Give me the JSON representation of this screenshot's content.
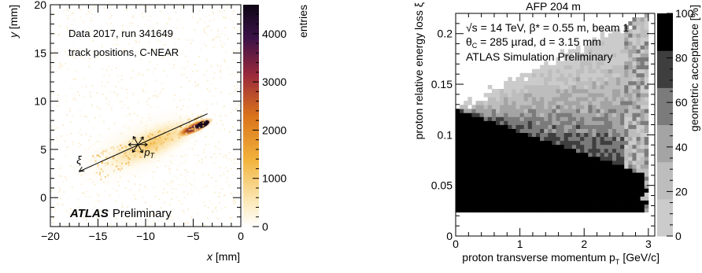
{
  "chart_data": [
    {
      "type": "heatmap",
      "title": "",
      "xlabel": "x [mm]",
      "ylabel": "y [mm]",
      "xlim": [
        -20,
        0
      ],
      "ylim": [
        -3,
        20
      ],
      "xticks": [
        "−20",
        "−15",
        "−10",
        "−5",
        "0"
      ],
      "yticks": [
        "0",
        "5",
        "10",
        "15",
        "20"
      ],
      "colorbar": {
        "label": "entries",
        "range": [
          0,
          4600
        ],
        "ticks": [
          "0",
          "1000",
          "2000",
          "3000",
          "4000"
        ],
        "colors": [
          "#ffffff",
          "#fbe7b4",
          "#f2b33c",
          "#d9731b",
          "#9b2a3c",
          "#3c1248",
          "#0d0615"
        ]
      },
      "annotations": [
        "Data 2017, run 341649",
        "track positions, C-NEAR"
      ],
      "atlas_label": "ATLAS",
      "atlas_suffix": "Preliminary",
      "arrow_labels": {
        "xi": "ξ",
        "pt": "p",
        "pt_sub": "T"
      },
      "distribution": {
        "peak": {
          "x": -4.0,
          "y": 7.6,
          "value": 4600
        },
        "axis_from": {
          "x": -17.0,
          "y": 2.7
        },
        "axis_to": {
          "x": -3.5,
          "y": 8.7
        },
        "cross_point": {
          "x": -10.8,
          "y": 5.5
        }
      }
    },
    {
      "type": "heatmap",
      "title": "AFP 204 m",
      "xlabel": "proton transverse momentum p",
      "xlabel_sub": "T",
      "xlabel_unit": "[GeV/c]",
      "ylabel": "proton relative energy loss ξ",
      "xlim": [
        0,
        3.1
      ],
      "ylim": [
        0,
        0.22
      ],
      "xticks": [
        "0",
        "1",
        "2",
        "3"
      ],
      "yticks": [
        "0",
        "0.05",
        "0.1",
        "0.15",
        "0.2"
      ],
      "colorbar": {
        "label": "geometric acceptance [%]",
        "range": [
          0,
          100
        ],
        "ticks": [
          "0",
          "20",
          "40",
          "60",
          "80",
          "100"
        ],
        "grey_levels": [
          "#cbcbcb",
          "#bdbdbd",
          "#a4a4a4",
          "#7b7b7b",
          "#3e3e3e",
          "#000000"
        ]
      },
      "annotations": [
        "√s = 14 TeV, β* = 0.55 m, beam 1",
        "θ_C = 285 µrad, d = 3.15 mm",
        "ATLAS Simulation Preliminary"
      ],
      "regions": {
        "full_acceptance": {
          "xi_min": 0.024,
          "xi_max_at_pt0": 0.125,
          "xi_max_at_pt3": 0.06,
          "acceptance": 100
        },
        "partial_acceptance_upper_edge": {
          "pt_start": 0.0,
          "xi_at_pt0": 0.125,
          "pt_end": 3.0,
          "xi_at_pt_end": 0.22
        },
        "below_threshold_xi": 0.024
      }
    }
  ]
}
